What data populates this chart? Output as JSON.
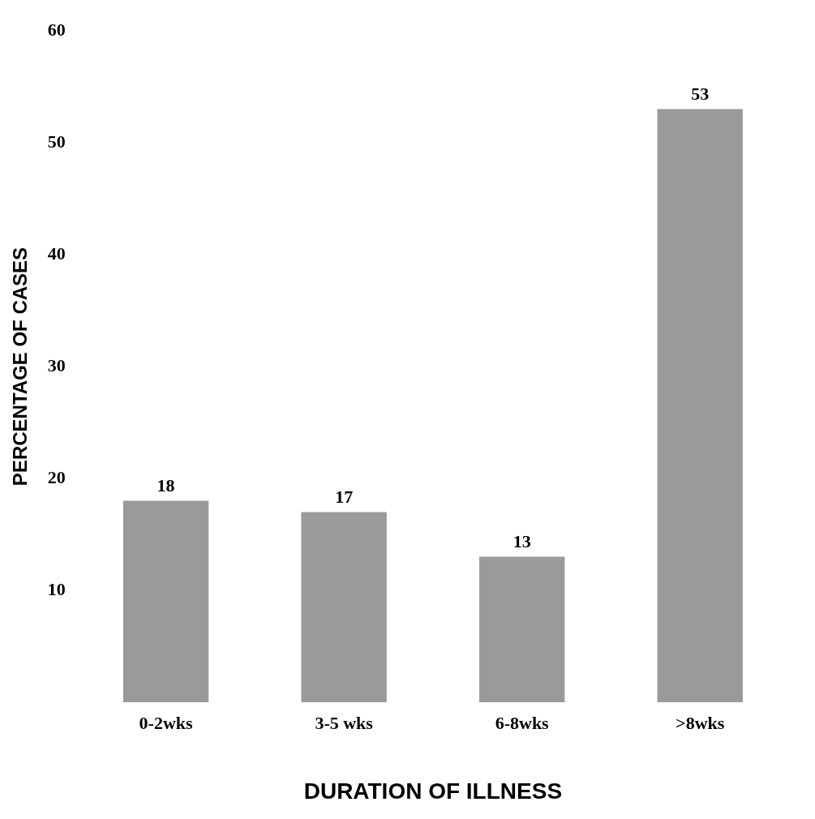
{
  "chart_data": {
    "type": "bar",
    "xlabel": "DURATION OF ILLNESS",
    "ylabel": "PERCENTAGE OF CASES",
    "categories": [
      "0-2wks",
      "3-5 wks",
      "6-8wks",
      ">8wks"
    ],
    "values": [
      18,
      17,
      13,
      53
    ],
    "color": "#9a9a9a",
    "ylim": [
      0,
      60
    ],
    "yticks": [
      10,
      20,
      30,
      40,
      50,
      60
    ],
    "data_labels": true,
    "grid": false,
    "legend": false
  }
}
